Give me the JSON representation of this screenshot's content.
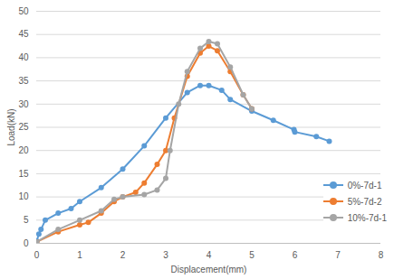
{
  "chart_data": {
    "type": "line",
    "xlabel": "Displacement(mm)",
    "ylabel": "Load(kN)",
    "xlim": [
      0,
      8
    ],
    "xticks": [
      0,
      1,
      2,
      3,
      4,
      5,
      6,
      7,
      8
    ],
    "ylim": [
      0,
      50
    ],
    "yticks": [
      0,
      5,
      10,
      15,
      20,
      25,
      30,
      35,
      40,
      45,
      50
    ],
    "grid": true,
    "legend": "right",
    "marker": "circle",
    "series": [
      {
        "name": "0%-7d-1",
        "color": "#5b9bd5",
        "x": [
          0,
          0.05,
          0.1,
          0.2,
          0.5,
          0.8,
          1.0,
          1.5,
          2.0,
          2.5,
          3.0,
          3.5,
          3.8,
          4.0,
          4.3,
          4.5,
          5.0,
          5.5,
          5.98,
          6.0,
          6.5,
          6.8
        ],
        "values": [
          0.5,
          2,
          3,
          5,
          6.5,
          7.5,
          9,
          12,
          16,
          21,
          27,
          32.5,
          34,
          34,
          33,
          31,
          28.5,
          26.5,
          24.5,
          24,
          23,
          22
        ]
      },
      {
        "name": "5%-7d-2",
        "color": "#ed7d31",
        "x": [
          0,
          0.5,
          1.0,
          1.2,
          1.5,
          1.8,
          2.0,
          2.3,
          2.5,
          2.8,
          3.0,
          3.2,
          3.5,
          3.8,
          4.0,
          4.2,
          4.5,
          4.8,
          5.0
        ],
        "values": [
          0.3,
          2.5,
          4,
          4.5,
          6.5,
          9,
          10,
          11,
          13,
          17,
          20,
          27,
          36,
          41,
          42.5,
          41.5,
          37,
          32,
          29
        ]
      },
      {
        "name": "10%-7d-1",
        "color": "#a5a5a5",
        "x": [
          0,
          0.5,
          1.0,
          1.5,
          1.8,
          2.0,
          2.5,
          2.8,
          3.0,
          3.1,
          3.3,
          3.5,
          3.8,
          4.0,
          4.2,
          4.5,
          4.8,
          5.0
        ],
        "values": [
          0.3,
          3,
          5,
          7,
          9.5,
          10,
          10.5,
          11.5,
          14,
          20,
          30,
          37,
          42,
          43.5,
          43,
          38,
          32,
          29
        ]
      }
    ]
  }
}
